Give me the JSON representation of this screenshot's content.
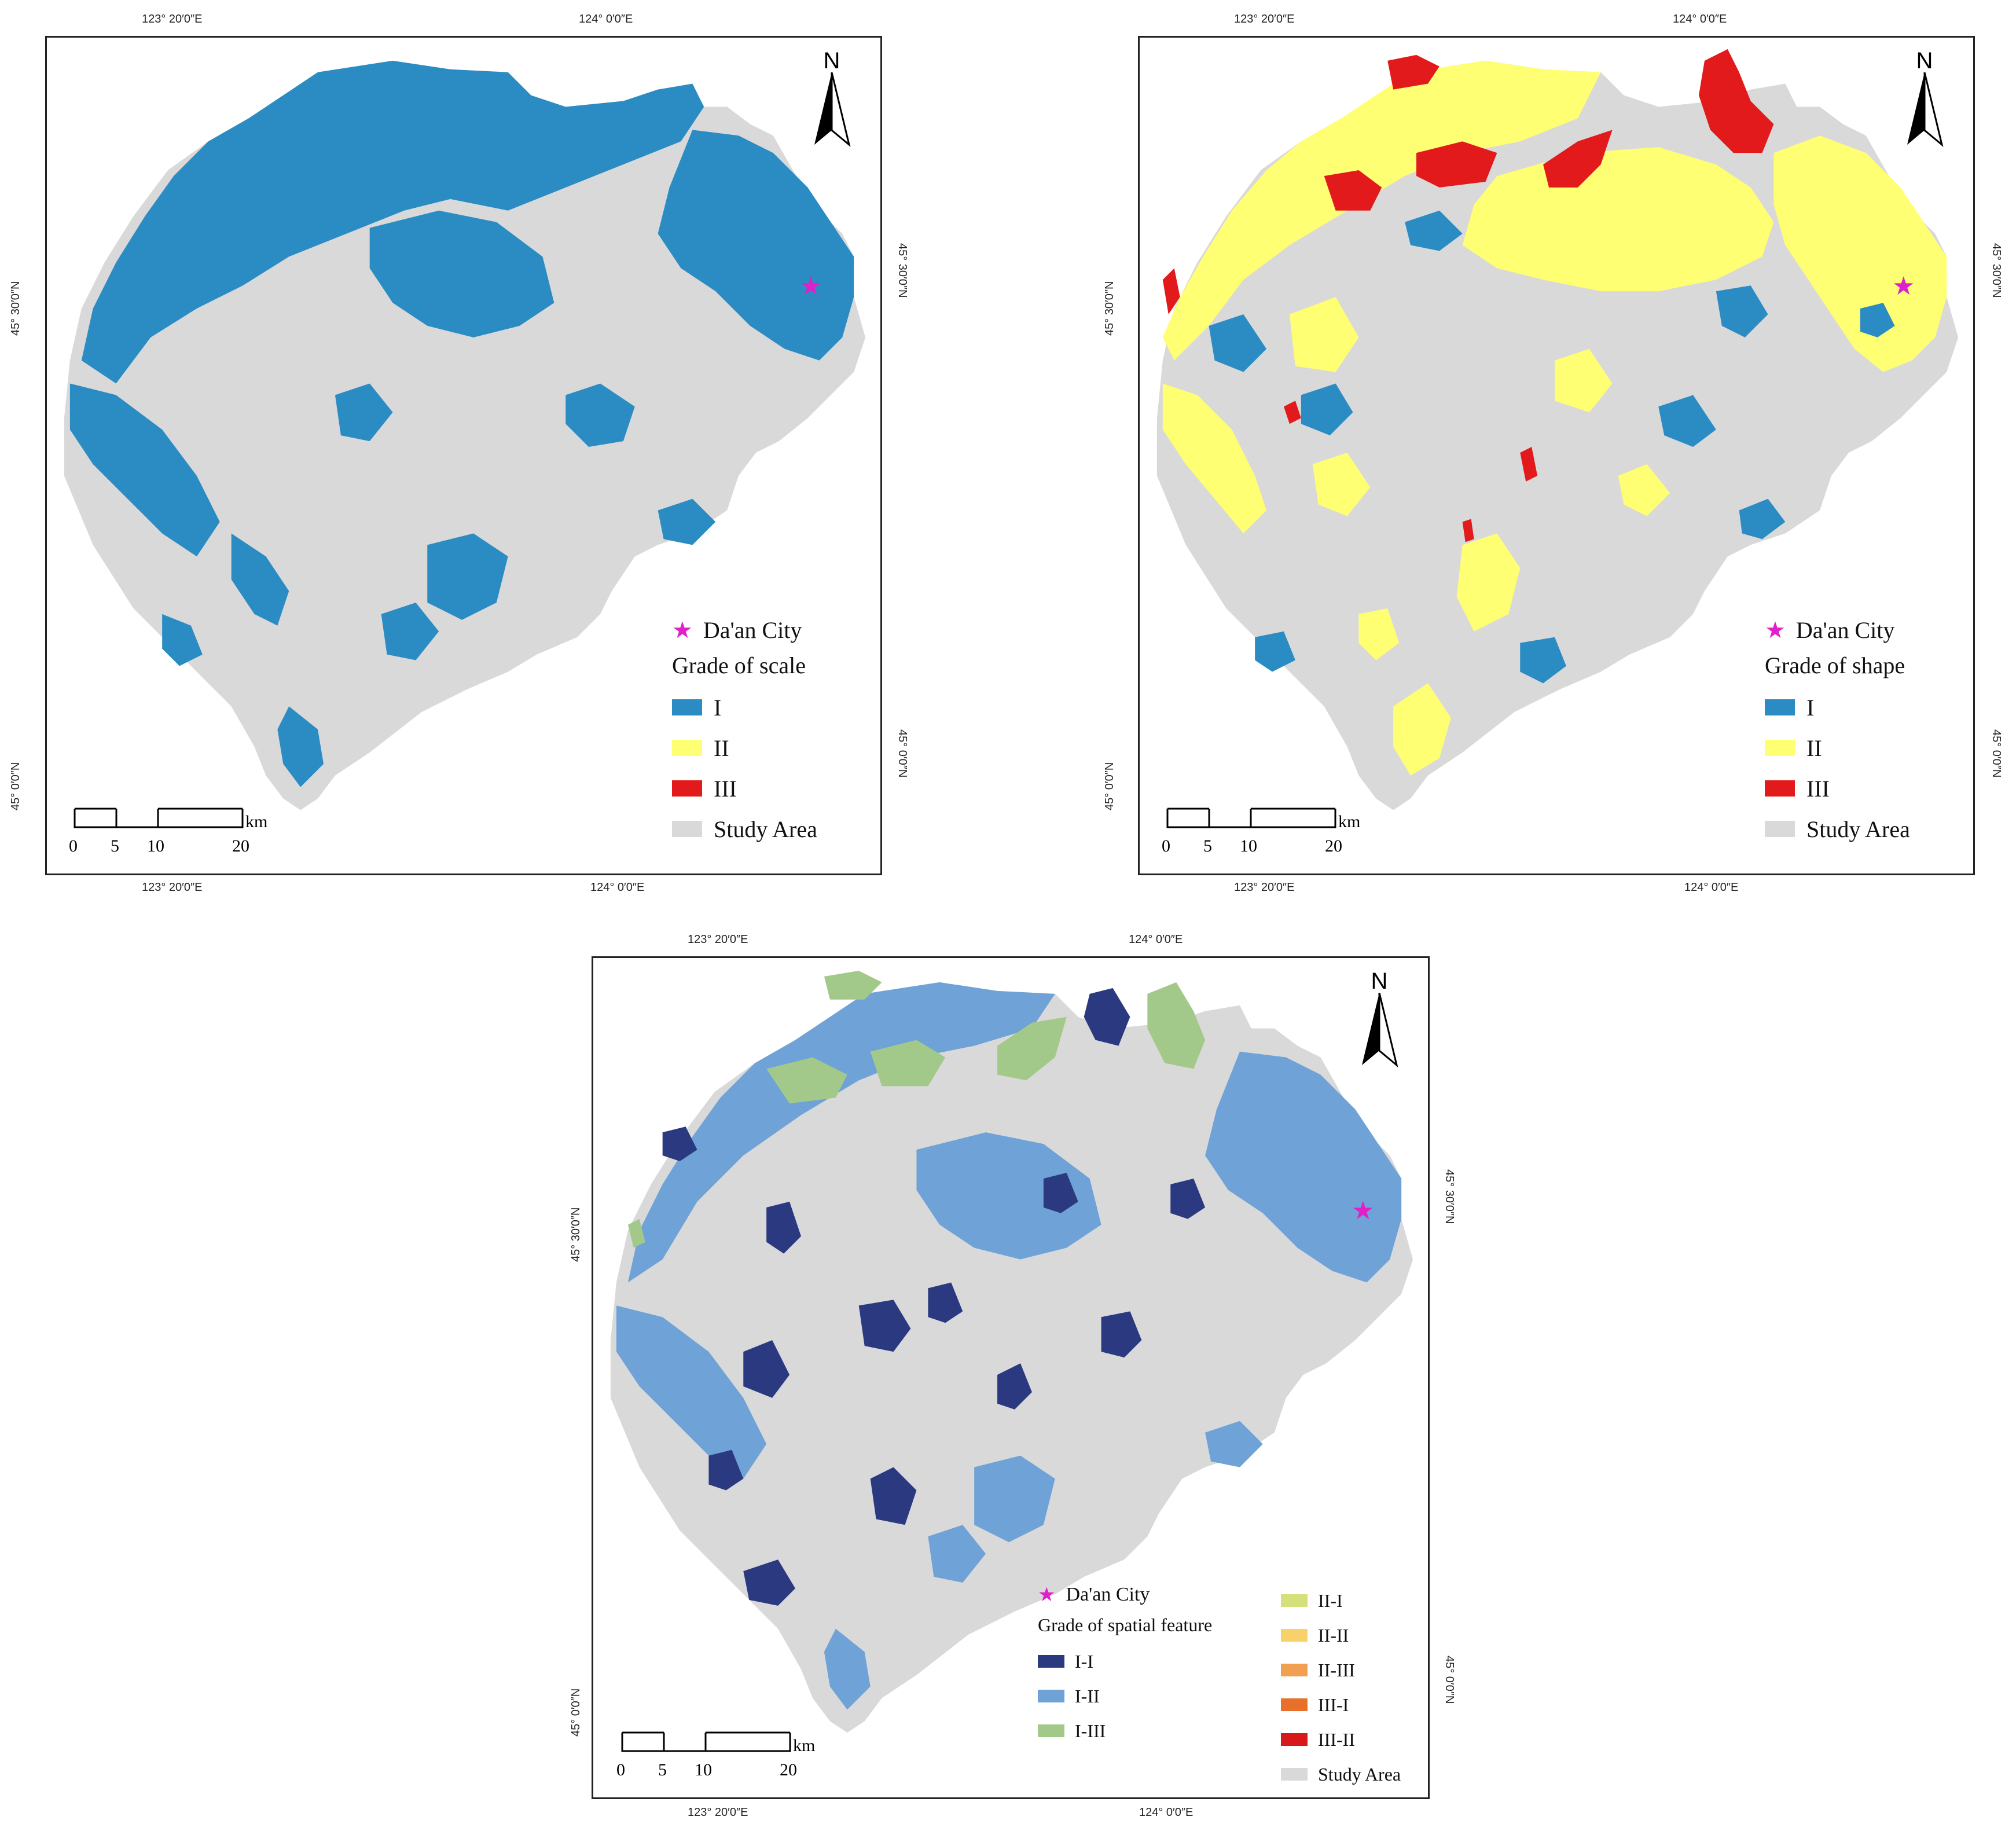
{
  "palette": {
    "study_area": "#d9d9d9",
    "grade_I": "#2b8cc4",
    "grade_II": "#ffff73",
    "grade_III": "#e31a1c",
    "sf_I_I": "#2b3a80",
    "sf_I_II": "#6fa2d6",
    "sf_I_III": "#a3c98a",
    "sf_II_I": "#d4e07c",
    "sf_II_II": "#f7d26a",
    "sf_II_III": "#f0a050",
    "sf_III_I": "#e8702a",
    "sf_III_II": "#d7191c",
    "city_star": "#e020c8"
  },
  "coords": {
    "lon_123_20": "123° 20′0″E",
    "lon_124_0": "124° 0′0″E",
    "lat_45_30": "45° 30′0″N",
    "lat_45_0": "45° 0′0″N"
  },
  "north_label": "N",
  "scale": {
    "ticks": [
      "0",
      "5",
      "10",
      "20"
    ],
    "unit": "km"
  },
  "panels": [
    {
      "id": "scale",
      "legend": {
        "city": "Da'an City",
        "title": "Grade of  scale",
        "items": [
          {
            "label": "I",
            "color": "#2b8cc4"
          },
          {
            "label": "II",
            "color": "#ffff73"
          },
          {
            "label": "III",
            "color": "#e31a1c"
          },
          {
            "label": "Study Area",
            "color": "#d9d9d9"
          }
        ]
      }
    },
    {
      "id": "shape",
      "legend": {
        "city": "Da'an City",
        "title": "Grade of shape",
        "items": [
          {
            "label": "I",
            "color": "#2b8cc4"
          },
          {
            "label": "II",
            "color": "#ffff73"
          },
          {
            "label": "III",
            "color": "#e31a1c"
          },
          {
            "label": "Study Area",
            "color": "#d9d9d9"
          }
        ]
      }
    },
    {
      "id": "spatial",
      "legend": {
        "city": "Da'an City",
        "title": "Grade of spatial feature",
        "col1": [
          {
            "label": "I-I",
            "color": "#2b3a80"
          },
          {
            "label": "I-II",
            "color": "#6fa2d6"
          },
          {
            "label": "I-III",
            "color": "#a3c98a"
          }
        ],
        "col2": [
          {
            "label": "II-I",
            "color": "#d4e07c"
          },
          {
            "label": "II-II",
            "color": "#f7d26a"
          },
          {
            "label": "II-III",
            "color": "#f0a050"
          },
          {
            "label": "III-I",
            "color": "#e8702a"
          },
          {
            "label": "III-II",
            "color": "#d7191c"
          },
          {
            "label": "Study Area",
            "color": "#d9d9d9"
          }
        ]
      }
    }
  ]
}
